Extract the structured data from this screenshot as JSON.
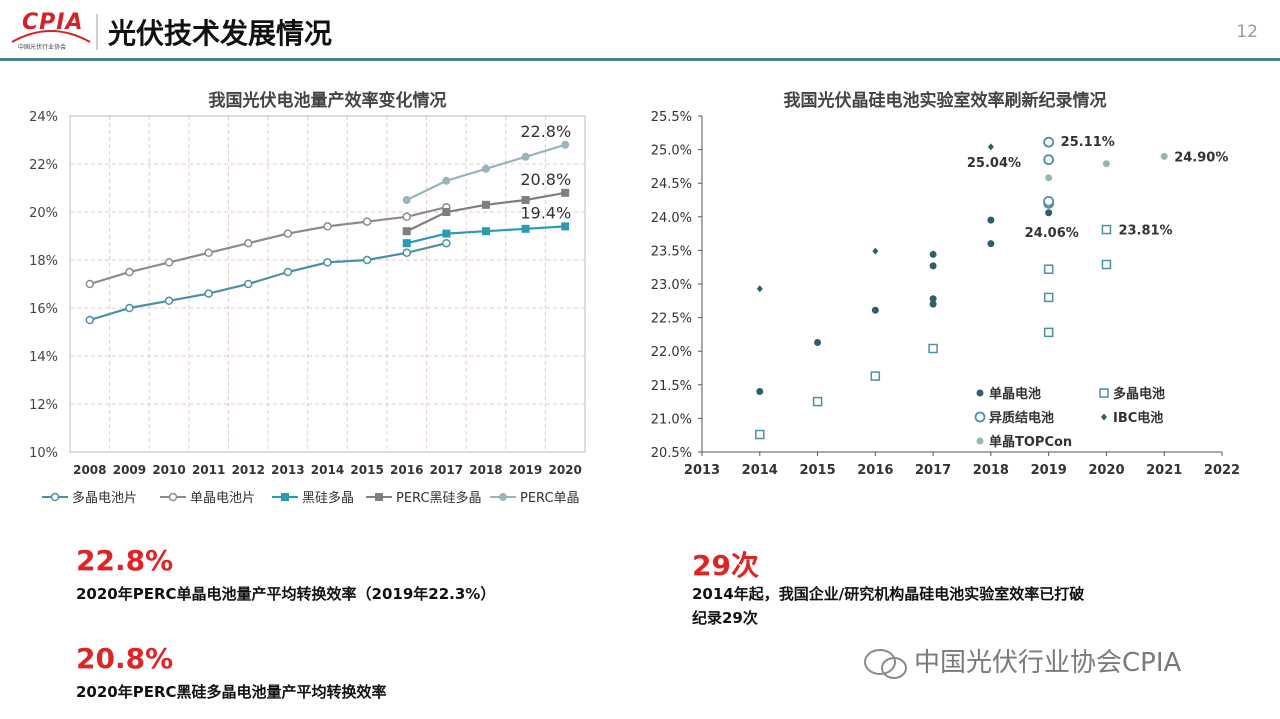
{
  "header": {
    "logo_text": "CPIA",
    "logo_subtitle": "中国光伏行业协会",
    "title": "光伏技术发展情况",
    "page_number": "12"
  },
  "chart_data": [
    {
      "type": "line",
      "title": "我国光伏电池量产效率变化情况",
      "x": [
        2008,
        2009,
        2010,
        2011,
        2012,
        2013,
        2014,
        2015,
        2016,
        2017,
        2018,
        2019,
        2020
      ],
      "ylim": [
        10,
        24
      ],
      "yticks": [
        10,
        12,
        14,
        16,
        18,
        20,
        22,
        24
      ],
      "ytick_labels": [
        "10%",
        "12%",
        "14%",
        "16%",
        "18%",
        "20%",
        "22%",
        "24%"
      ],
      "grid": true,
      "legend_position": "bottom",
      "series": [
        {
          "name": "多晶电池片",
          "color": "#4d8fa3",
          "marker": "circle-open",
          "x": [
            2008,
            2009,
            2010,
            2011,
            2012,
            2013,
            2014,
            2015,
            2016,
            2017
          ],
          "values": [
            15.5,
            16.0,
            16.3,
            16.6,
            17.0,
            17.5,
            17.9,
            18.0,
            18.3,
            18.7
          ]
        },
        {
          "name": "单晶电池片",
          "color": "#8c8c8c",
          "marker": "circle-open",
          "x": [
            2008,
            2009,
            2010,
            2011,
            2012,
            2013,
            2014,
            2015,
            2016,
            2017
          ],
          "values": [
            17.0,
            17.5,
            17.9,
            18.3,
            18.7,
            19.1,
            19.4,
            19.6,
            19.8,
            20.2
          ]
        },
        {
          "name": "黑硅多晶",
          "color": "#2b9bb2",
          "marker": "square",
          "x": [
            2016,
            2017,
            2018,
            2019,
            2020
          ],
          "values": [
            18.7,
            19.1,
            19.2,
            19.3,
            19.4
          ]
        },
        {
          "name": "PERC黑硅多晶",
          "color": "#7f7f7f",
          "marker": "square",
          "x": [
            2016,
            2017,
            2018,
            2019,
            2020
          ],
          "values": [
            19.2,
            20.0,
            20.3,
            20.5,
            20.8
          ]
        },
        {
          "name": "PERC单晶",
          "color": "#96b6ba",
          "marker": "circle",
          "x": [
            2016,
            2017,
            2018,
            2019,
            2020
          ],
          "values": [
            20.5,
            21.3,
            21.8,
            22.3,
            22.8
          ]
        }
      ],
      "annotations": [
        {
          "text": "22.8%",
          "x": 2020,
          "y": 22.8
        },
        {
          "text": "20.8%",
          "x": 2020,
          "y": 20.8
        },
        {
          "text": "19.4%",
          "x": 2020,
          "y": 19.4
        }
      ]
    },
    {
      "type": "scatter",
      "title": "我国光伏晶硅电池实验室效率刷新纪录情况",
      "xlim": [
        2013,
        2022
      ],
      "xticks": [
        2013,
        2014,
        2015,
        2016,
        2017,
        2018,
        2019,
        2020,
        2021,
        2022
      ],
      "ylim": [
        20.5,
        25.5
      ],
      "yticks": [
        20.5,
        21.0,
        21.5,
        22.0,
        22.5,
        23.0,
        23.5,
        24.0,
        24.5,
        25.0,
        25.5
      ],
      "ytick_labels": [
        "20.5%",
        "21.0%",
        "21.5%",
        "22.0%",
        "22.5%",
        "23.0%",
        "23.5%",
        "24.0%",
        "24.5%",
        "25.0%",
        "25.5%"
      ],
      "grid": false,
      "legend_position": "bottom-right",
      "series": [
        {
          "name": "单晶电池",
          "color": "#2e5f6b",
          "marker": "dot",
          "points": [
            [
              2014,
              21.4
            ],
            [
              2015,
              22.13
            ],
            [
              2016,
              22.61
            ],
            [
              2017,
              22.7
            ],
            [
              2017,
              22.78
            ],
            [
              2017,
              23.27
            ],
            [
              2017,
              23.44
            ],
            [
              2018,
              23.6
            ],
            [
              2018,
              23.95
            ],
            [
              2019,
              24.06
            ]
          ]
        },
        {
          "name": "多晶电池",
          "color": "#4d8fa3",
          "marker": "square-open",
          "points": [
            [
              2014,
              20.76
            ],
            [
              2015,
              21.25
            ],
            [
              2016,
              21.63
            ],
            [
              2017,
              22.04
            ],
            [
              2019,
              22.28
            ],
            [
              2019,
              22.8
            ],
            [
              2019,
              23.22
            ],
            [
              2020,
              23.29
            ],
            [
              2020,
              23.81
            ]
          ]
        },
        {
          "name": "异质结电池",
          "color": "#4d8fa3",
          "marker": "circle-open",
          "points": [
            [
              2019,
              24.2
            ],
            [
              2019,
              24.23
            ],
            [
              2019,
              24.85
            ],
            [
              2019,
              25.11
            ]
          ]
        },
        {
          "name": "IBC电池",
          "color": "#2e5f6b",
          "marker": "diamond",
          "points": [
            [
              2014,
              22.93
            ],
            [
              2016,
              23.49
            ],
            [
              2018,
              25.04
            ]
          ]
        },
        {
          "name": "单晶TOPCon",
          "color": "#8fb8b6",
          "marker": "dot",
          "points": [
            [
              2019,
              24.58
            ],
            [
              2020,
              24.79
            ],
            [
              2021,
              24.9
            ]
          ]
        }
      ],
      "annotations": [
        {
          "text": "25.11%",
          "x": 2019,
          "y": 25.11
        },
        {
          "text": "25.04%",
          "x": 2018,
          "y": 25.04
        },
        {
          "text": "24.90%",
          "x": 2021,
          "y": 24.9
        },
        {
          "text": "24.06%",
          "x": 2019,
          "y": 24.06
        },
        {
          "text": "23.81%",
          "x": 2020,
          "y": 23.81
        }
      ]
    }
  ],
  "stats": {
    "stat1_value": "22.8%",
    "stat1_desc": "2020年PERC单晶电池量产平均转换效率（2019年22.3%）",
    "stat2_value": "20.8%",
    "stat2_desc": "2020年PERC黑硅多晶电池量产平均转换效率",
    "stat3_value": "29次",
    "stat3_desc_line1": "2014年起，我国企业/研究机构晶硅电池实验室效率已打破",
    "stat3_desc_line2": "纪录29次"
  },
  "watermark": "中国光伏行业协会CPIA",
  "colors": {
    "accent_red": "#e02424",
    "header_rule": "#4a7f93"
  }
}
